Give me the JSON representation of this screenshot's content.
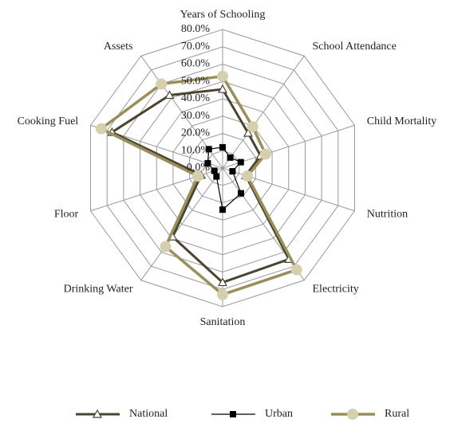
{
  "chart_data": {
    "type": "radar",
    "categories": [
      "Years of Schooling",
      "School Attendance",
      "Child Mortality",
      "Nutrition",
      "Electricity",
      "Sanitation",
      "Drinking Water",
      "Floor",
      "Cooking Fuel",
      "Assets"
    ],
    "series": [
      {
        "name": "National",
        "color": "#4a4530",
        "marker": "triangle",
        "values": [
          45.5,
          25,
          23,
          14,
          65,
          66,
          49,
          13,
          67,
          52
        ]
      },
      {
        "name": "Urban",
        "color": "#000000",
        "marker": "square",
        "values": [
          12,
          7.5,
          11,
          6,
          18,
          24,
          6,
          5,
          9,
          13.5
        ]
      },
      {
        "name": "Rural",
        "color": "#9a8f5a",
        "marker": "circle",
        "values": [
          53,
          29.5,
          26,
          15,
          72.5,
          73,
          56,
          15,
          73.5,
          60
        ]
      }
    ],
    "ylim": [
      0,
      80
    ],
    "yticks": [
      {
        "value": 0,
        "label": "0.0%"
      },
      {
        "value": 10,
        "label": "10.0%"
      },
      {
        "value": 20,
        "label": "20.0%"
      },
      {
        "value": 30,
        "label": "30.0%"
      },
      {
        "value": 40,
        "label": "40.0%"
      },
      {
        "value": 50,
        "label": "50.0%"
      },
      {
        "value": 60,
        "label": "60.0%"
      },
      {
        "value": 70,
        "label": "70.0%"
      },
      {
        "value": 80,
        "label": "80.0%"
      }
    ],
    "grid": true
  }
}
